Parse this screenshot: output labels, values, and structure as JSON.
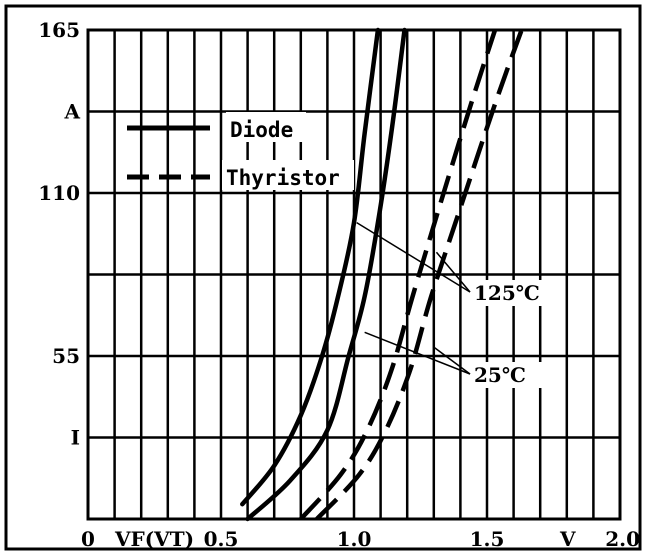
{
  "chart_data": {
    "type": "line",
    "xlim": [
      0,
      2.0
    ],
    "ylim": [
      0,
      165
    ],
    "grid": true,
    "legend_position": "top-left",
    "x_tick_labels": [
      {
        "x": 0.0,
        "text": "0"
      },
      {
        "x": 0.5,
        "text": "0.5"
      },
      {
        "x": 1.0,
        "text": "1.0"
      },
      {
        "x": 1.5,
        "text": "1.5"
      },
      {
        "x": 2.0,
        "text": "2.0"
      }
    ],
    "x_axis_label": "VF(VT)",
    "x_unit": "V",
    "y_tick_labels": [
      {
        "y": 165,
        "text": "165"
      },
      {
        "y": 137.5,
        "text": "A"
      },
      {
        "y": 110,
        "text": "110"
      },
      {
        "y": 55,
        "text": "55"
      },
      {
        "y": 27.5,
        "text": "I"
      }
    ],
    "legend": [
      {
        "label": "Diode",
        "style": "solid"
      },
      {
        "label": "Thyristor",
        "style": "dashed"
      }
    ],
    "series": [
      {
        "name": "Diode",
        "temperature": "125℃",
        "style": "solid",
        "x": [
          0.58,
          0.7,
          0.8,
          0.88,
          0.94,
          1.0,
          1.04,
          1.09
        ],
        "y": [
          5,
          18,
          35,
          55,
          75,
          100,
          130,
          165
        ]
      },
      {
        "name": "Diode",
        "temperature": "25℃",
        "style": "solid",
        "x": [
          0.6,
          0.76,
          0.9,
          0.98,
          1.04,
          1.09,
          1.14,
          1.19
        ],
        "y": [
          0,
          13,
          30,
          55,
          75,
          100,
          130,
          165
        ]
      },
      {
        "name": "Thyristor",
        "temperature": "125℃",
        "style": "dashed",
        "x": [
          0.8,
          0.95,
          1.05,
          1.14,
          1.22,
          1.32,
          1.44,
          1.53
        ],
        "y": [
          0,
          15,
          30,
          50,
          75,
          105,
          140,
          165
        ]
      },
      {
        "name": "Thyristor",
        "temperature": "25℃",
        "style": "dashed",
        "x": [
          0.86,
          1.02,
          1.12,
          1.21,
          1.29,
          1.4,
          1.53,
          1.63
        ],
        "y": [
          0,
          15,
          30,
          50,
          75,
          105,
          140,
          165
        ]
      }
    ],
    "annotations": [
      {
        "text": "125℃",
        "targets": [
          {
            "x": 1.01,
            "y": 100
          },
          {
            "x": 1.31,
            "y": 90
          }
        ]
      },
      {
        "text": "25℃",
        "targets": [
          {
            "x": 1.04,
            "y": 63
          },
          {
            "x": 1.3,
            "y": 58
          }
        ]
      }
    ]
  }
}
